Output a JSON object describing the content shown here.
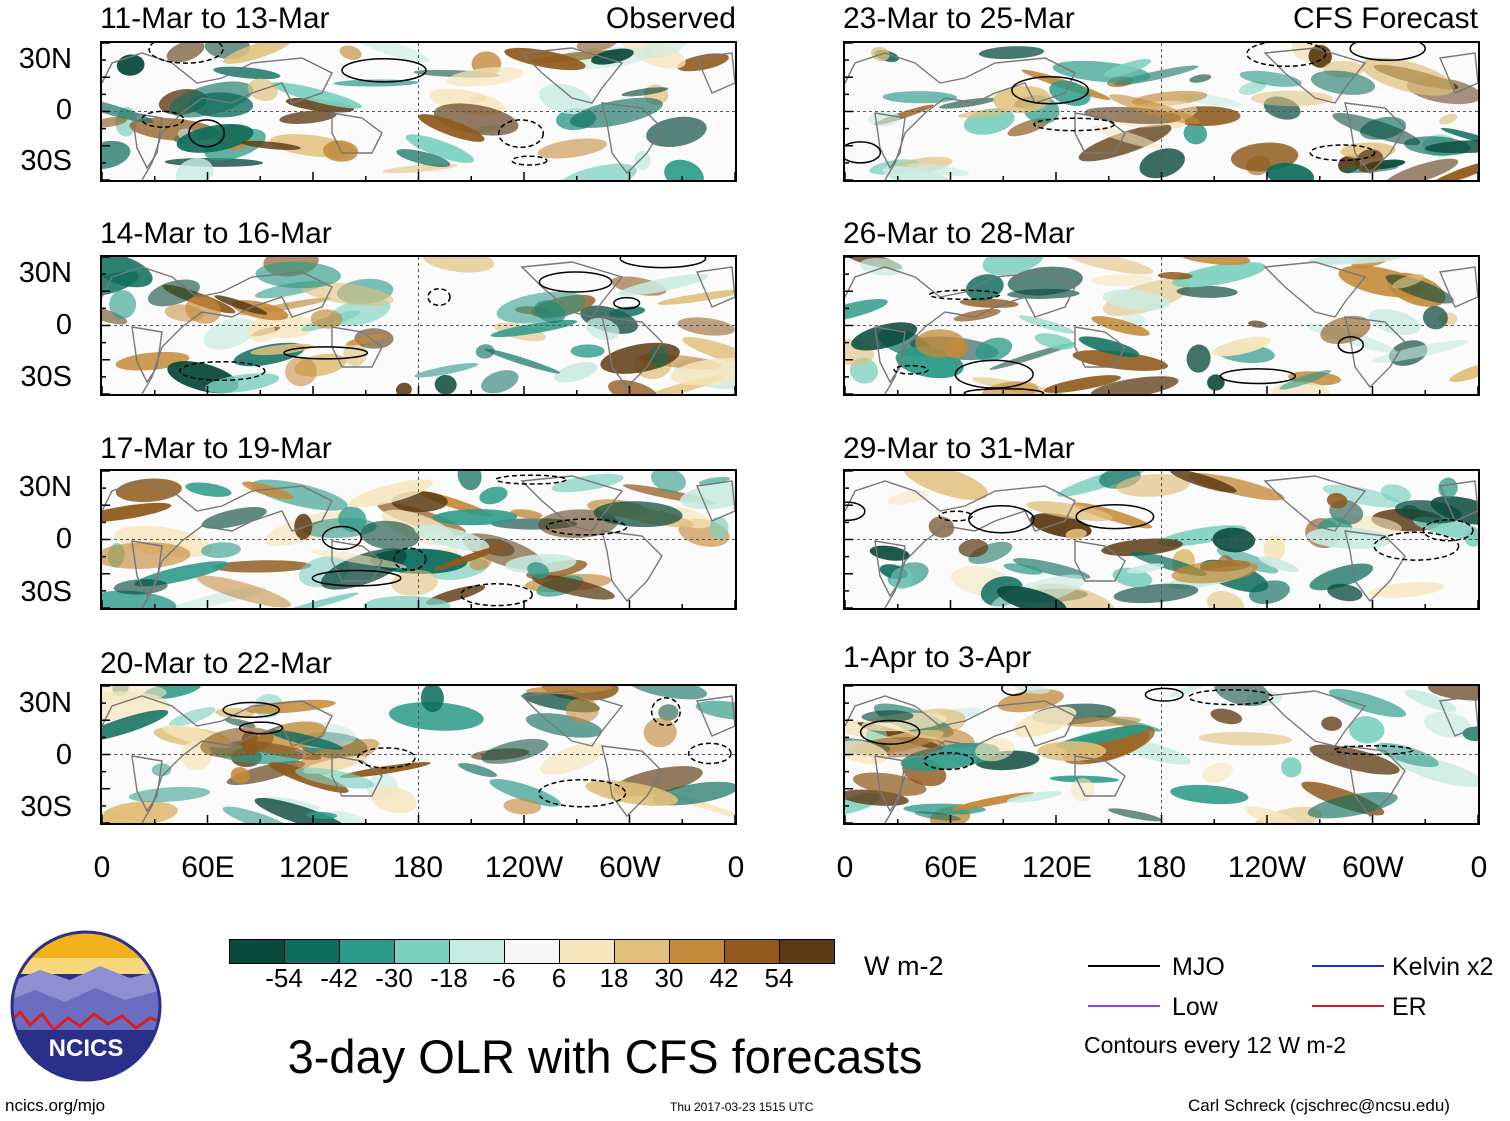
{
  "chart_data": {
    "type": "heatmap",
    "title": "3-day OLR with CFS forecasts",
    "units": "W m-2",
    "y_ticks": [
      "30N",
      "0",
      "30S"
    ],
    "x_ticks": [
      "0",
      "60E",
      "120E",
      "180",
      "120W",
      "60W",
      "0"
    ],
    "panels": [
      {
        "period": "11-Mar to 13-Mar",
        "label": "Observed",
        "column": "left"
      },
      {
        "period": "14-Mar to 16-Mar",
        "label": "",
        "column": "left"
      },
      {
        "period": "17-Mar to 19-Mar",
        "label": "",
        "column": "left"
      },
      {
        "period": "20-Mar to 22-Mar",
        "label": "",
        "column": "left"
      },
      {
        "period": "23-Mar to 25-Mar",
        "label": "CFS Forecast",
        "column": "right"
      },
      {
        "period": "26-Mar to 28-Mar",
        "label": "",
        "column": "right"
      },
      {
        "period": "29-Mar to 31-Mar",
        "label": "",
        "column": "right"
      },
      {
        "period": "1-Apr to 3-Apr",
        "label": "",
        "column": "right"
      }
    ],
    "colorbar": {
      "ticks": [
        "-54",
        "-42",
        "-30",
        "-18",
        "-6",
        "6",
        "18",
        "30",
        "42",
        "54"
      ],
      "colors": [
        "#0a4a3c",
        "#0e6e5e",
        "#2c9a88",
        "#7cd0bf",
        "#c8ebe2",
        "#f7f7f7",
        "#f7e6bd",
        "#e0bf7a",
        "#c48a3a",
        "#8f5a1c",
        "#5c3a12"
      ]
    },
    "legend": [
      {
        "name": "MJO",
        "color": "#000000"
      },
      {
        "name": "Kelvin x2",
        "color": "#1f2fd6"
      },
      {
        "name": "Low",
        "color": "#9a44d6"
      },
      {
        "name": "ER",
        "color": "#d62020"
      }
    ],
    "contour_note": "Contours every 12 W m-2"
  },
  "logo": {
    "text": "NCICS"
  },
  "footer": {
    "url": "ncics.org/mjo",
    "timestamp": "Thu 2017-03-23 1515 UTC",
    "author": "Carl Schreck (cjschrec@ncsu.edu)"
  }
}
